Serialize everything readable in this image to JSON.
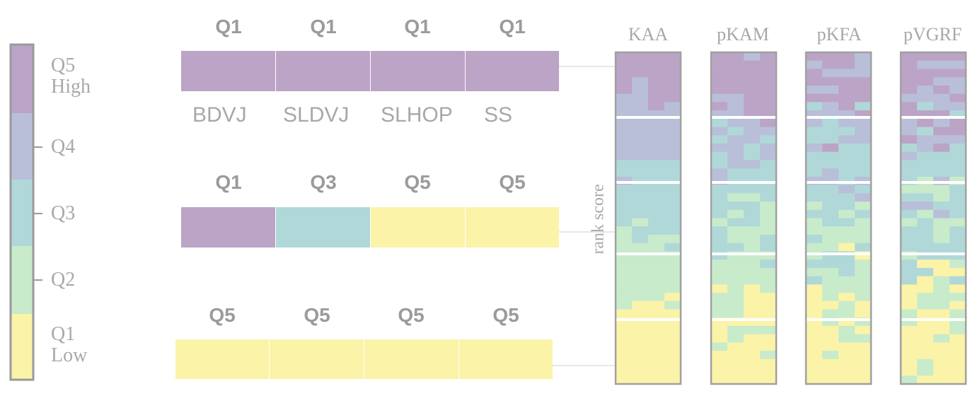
{
  "colors": {
    "Q1": "#fbf3a8",
    "Q2": "#c8ebcb",
    "Q3": "#b0d8d8",
    "Q4": "#b9bfd8",
    "Q5": "#bba4c6",
    "grid_white": "#ffffff",
    "frame": "#a0a0a0",
    "text": "#a8a8a8"
  },
  "legend": {
    "items": [
      {
        "level": "Q5",
        "sub": "High"
      },
      {
        "level": "Q4",
        "sub": ""
      },
      {
        "level": "Q3",
        "sub": ""
      },
      {
        "level": "Q2",
        "sub": ""
      },
      {
        "level": "Q1",
        "sub": "Low"
      }
    ]
  },
  "task_labels": [
    "BDVJ",
    "SLDVJ",
    "SLHOP",
    "SS"
  ],
  "rows": [
    {
      "quintiles": [
        "Q1",
        "Q1",
        "Q1",
        "Q1"
      ]
    },
    {
      "quintiles": [
        "Q1",
        "Q3",
        "Q5",
        "Q5"
      ]
    },
    {
      "quintiles": [
        "Q5",
        "Q5",
        "Q5",
        "Q5"
      ]
    }
  ],
  "heatmap": {
    "titles": [
      "KAA",
      "pKAM",
      "pKFA",
      "pVGRF"
    ],
    "axis_label": "rank score"
  }
}
